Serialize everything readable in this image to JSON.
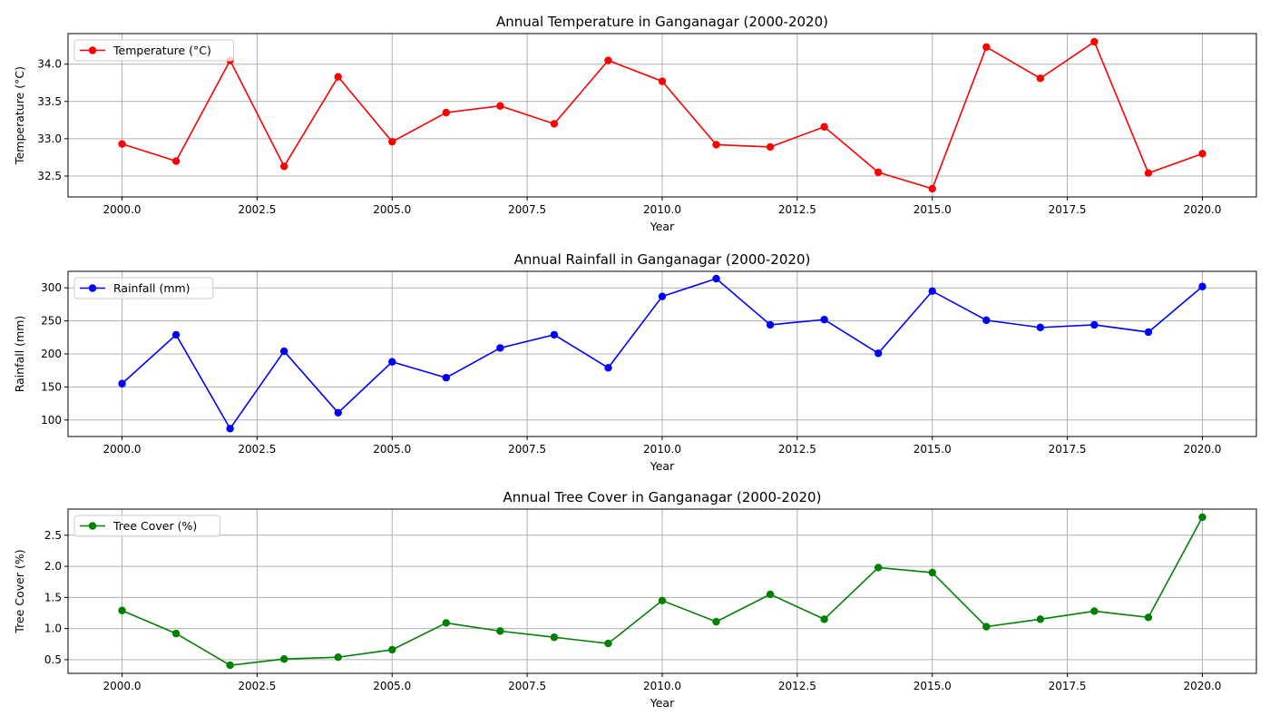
{
  "chart_data": [
    {
      "type": "line",
      "title": "Annual Temperature in Ganganagar (2000-2020)",
      "xlabel": "Year",
      "ylabel": "Temperature (°C)",
      "xlim": [
        1999,
        2021
      ],
      "ylim": [
        32.22,
        34.41
      ],
      "x_ticks": [
        2000,
        2002.5,
        2005,
        2007.5,
        2010,
        2012.5,
        2015,
        2017.5,
        2020
      ],
      "x_tick_labels": [
        "2000.0",
        "2002.5",
        "2005.0",
        "2007.5",
        "2010.0",
        "2012.5",
        "2015.0",
        "2017.5",
        "2020.0"
      ],
      "y_ticks": [
        32.5,
        33.0,
        33.5,
        34.0
      ],
      "y_tick_labels": [
        "32.5",
        "33.0",
        "33.5",
        "34.0"
      ],
      "grid": true,
      "legend_position": "upper-left",
      "x": [
        2000,
        2001,
        2002,
        2003,
        2004,
        2005,
        2006,
        2007,
        2008,
        2009,
        2010,
        2011,
        2012,
        2013,
        2014,
        2015,
        2016,
        2017,
        2018,
        2019,
        2020
      ],
      "series": [
        {
          "name": "Temperature (°C)",
          "color": "#ff0000",
          "marker": "circle",
          "values": [
            32.93,
            32.7,
            34.05,
            32.63,
            33.83,
            32.96,
            33.35,
            33.44,
            33.2,
            34.05,
            33.77,
            32.92,
            32.89,
            33.16,
            32.55,
            32.33,
            34.23,
            33.81,
            34.3,
            32.54,
            32.8
          ]
        }
      ]
    },
    {
      "type": "line",
      "title": "Annual Rainfall in Ganganagar (2000-2020)",
      "xlabel": "Year",
      "ylabel": "Rainfall (mm)",
      "xlim": [
        1999,
        2021
      ],
      "ylim": [
        75,
        325
      ],
      "x_ticks": [
        2000,
        2002.5,
        2005,
        2007.5,
        2010,
        2012.5,
        2015,
        2017.5,
        2020
      ],
      "x_tick_labels": [
        "2000.0",
        "2002.5",
        "2005.0",
        "2007.5",
        "2010.0",
        "2012.5",
        "2015.0",
        "2017.5",
        "2020.0"
      ],
      "y_ticks": [
        100,
        150,
        200,
        250,
        300
      ],
      "y_tick_labels": [
        "100",
        "150",
        "200",
        "250",
        "300"
      ],
      "grid": true,
      "legend_position": "upper-left",
      "x": [
        2000,
        2001,
        2002,
        2003,
        2004,
        2005,
        2006,
        2007,
        2008,
        2009,
        2010,
        2011,
        2012,
        2013,
        2014,
        2015,
        2016,
        2017,
        2018,
        2019,
        2020
      ],
      "series": [
        {
          "name": "Rainfall (mm)",
          "color": "#0000ff",
          "marker": "circle",
          "values": [
            155,
            229,
            87,
            204,
            111,
            188,
            164,
            209,
            229,
            179,
            287,
            314,
            244,
            252,
            201,
            295,
            251,
            240,
            244,
            233,
            302
          ]
        }
      ]
    },
    {
      "type": "line",
      "title": "Annual Tree Cover in Ganganagar (2000-2020)",
      "xlabel": "Year",
      "ylabel": "Tree Cover (%)",
      "xlim": [
        1999,
        2021
      ],
      "ylim": [
        0.28,
        2.92
      ],
      "x_ticks": [
        2000,
        2002.5,
        2005,
        2007.5,
        2010,
        2012.5,
        2015,
        2017.5,
        2020
      ],
      "x_tick_labels": [
        "2000.0",
        "2002.5",
        "2005.0",
        "2007.5",
        "2010.0",
        "2012.5",
        "2015.0",
        "2017.5",
        "2020.0"
      ],
      "y_ticks": [
        0.5,
        1.0,
        1.5,
        2.0,
        2.5
      ],
      "y_tick_labels": [
        "0.5",
        "1.0",
        "1.5",
        "2.0",
        "2.5"
      ],
      "grid": true,
      "legend_position": "upper-left",
      "x": [
        2000,
        2001,
        2002,
        2003,
        2004,
        2005,
        2006,
        2007,
        2008,
        2009,
        2010,
        2011,
        2012,
        2013,
        2014,
        2015,
        2016,
        2017,
        2018,
        2019,
        2020
      ],
      "series": [
        {
          "name": "Tree Cover (%)",
          "color": "#008000",
          "marker": "circle",
          "values": [
            1.29,
            0.92,
            0.41,
            0.51,
            0.54,
            0.66,
            1.09,
            0.96,
            0.86,
            0.76,
            1.45,
            1.11,
            1.55,
            1.15,
            1.98,
            1.9,
            1.03,
            1.15,
            1.28,
            1.18,
            2.79
          ]
        }
      ]
    }
  ]
}
